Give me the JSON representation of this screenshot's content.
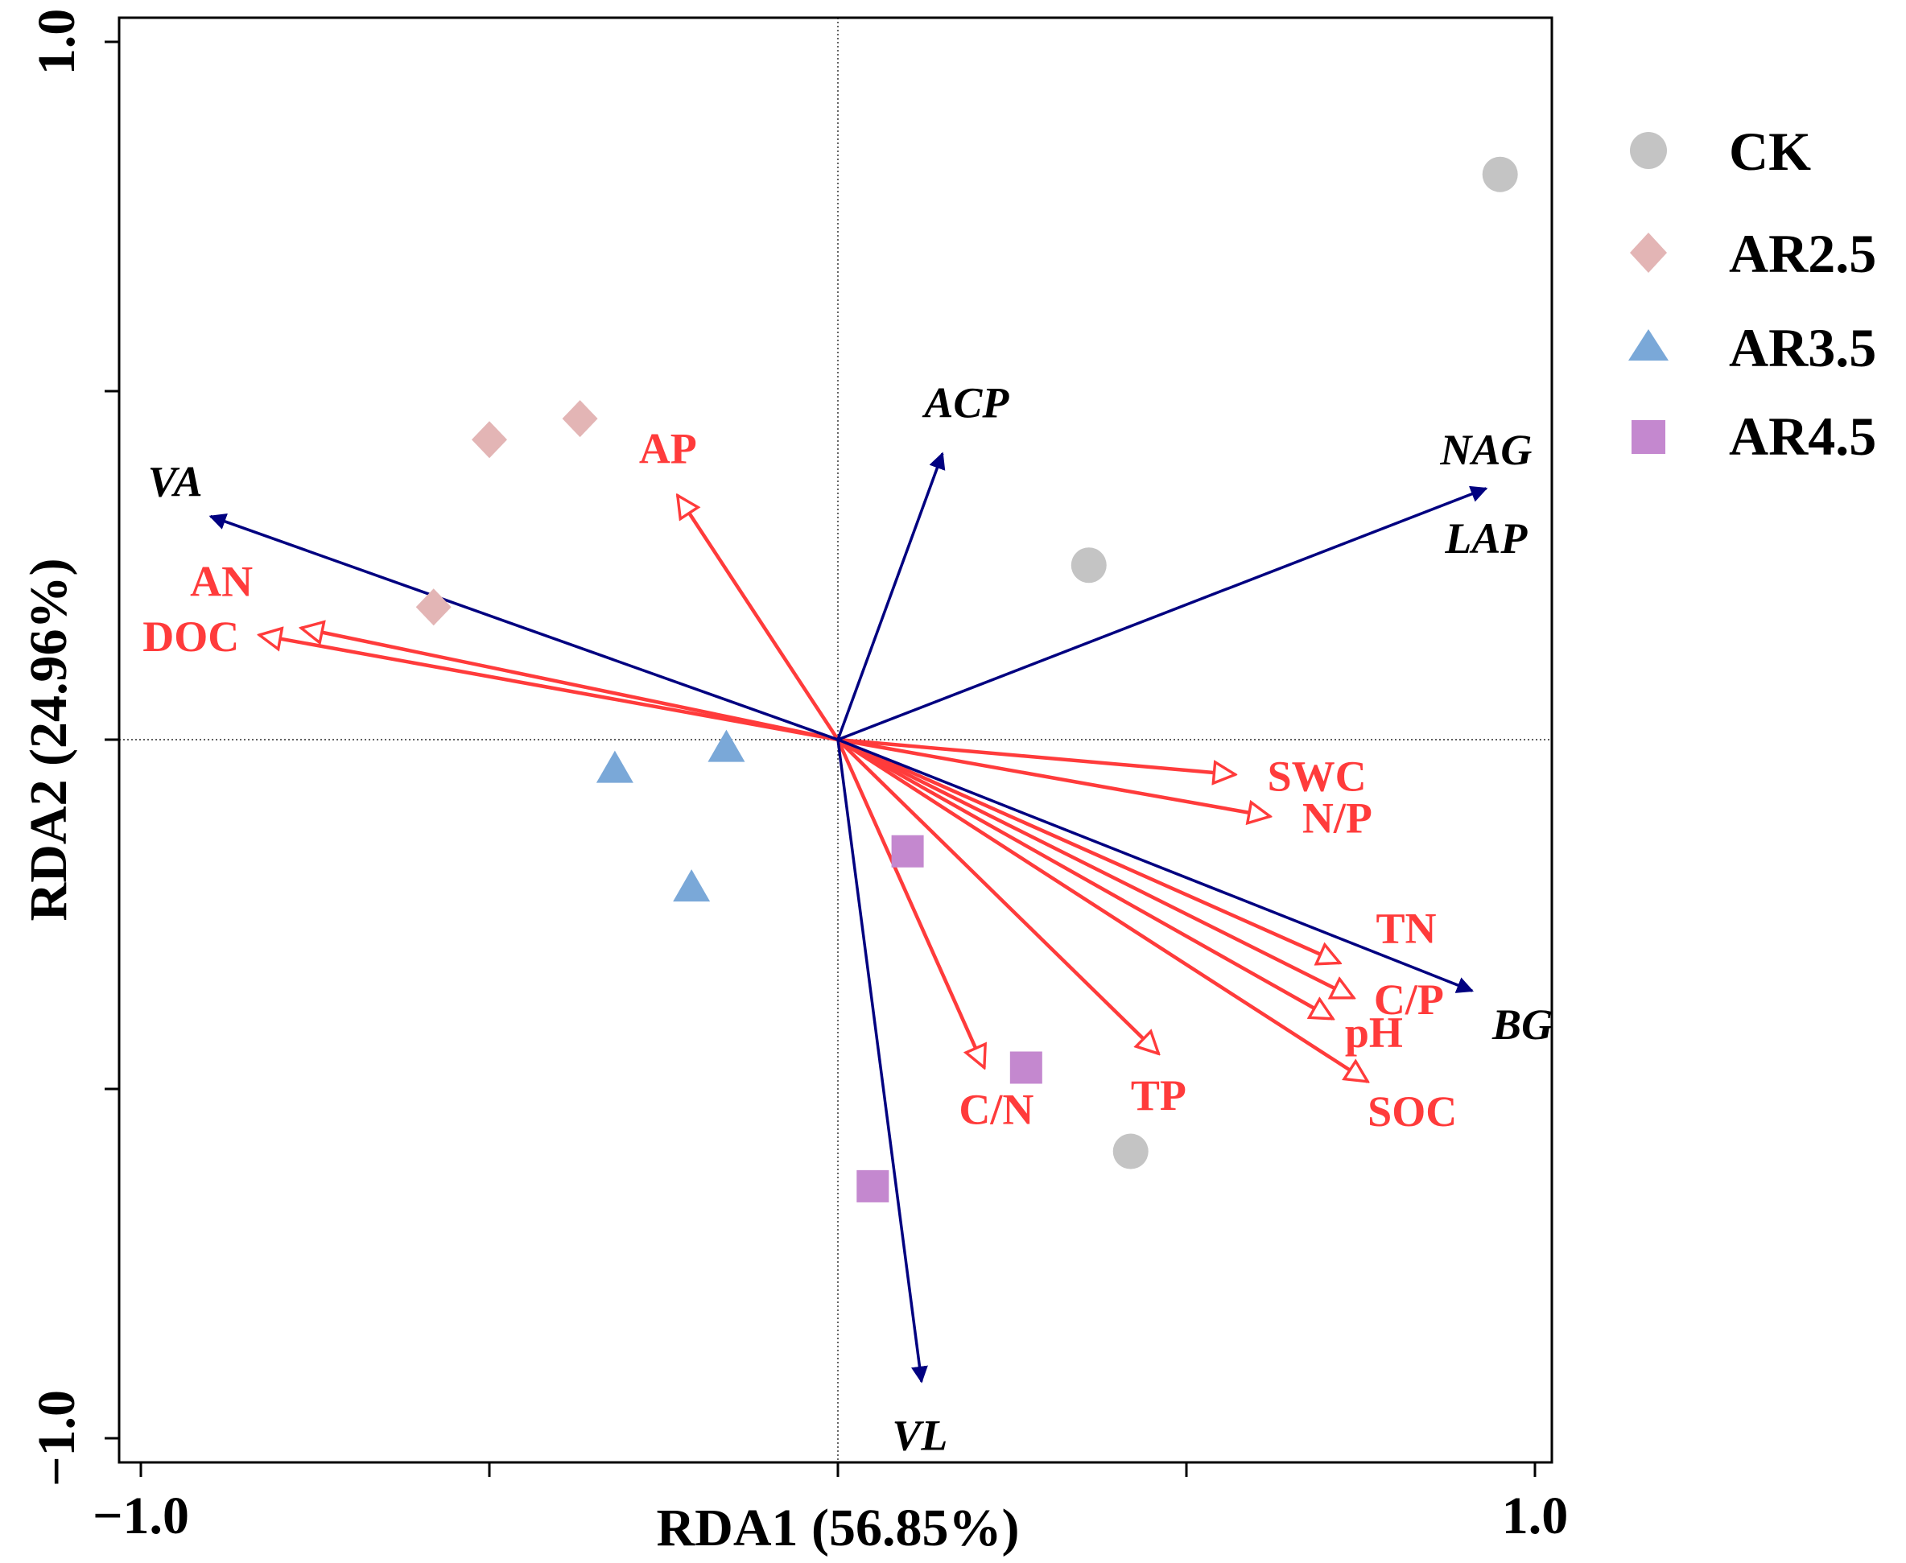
{
  "chart_data": {
    "type": "scatter",
    "title": "",
    "xlabel": "RDA1 (56.85%)",
    "ylabel": "RDA2 (24.96%)",
    "xlim": [
      -1.0,
      1.0
    ],
    "ylim": [
      -1.0,
      1.0
    ],
    "xtick_labels": [
      "−1.0",
      "1.0"
    ],
    "ytick_labels": [
      "1.0",
      "−1.0"
    ],
    "reference_lines": {
      "x": 0,
      "y": 0
    },
    "legend": {
      "position": "right",
      "entries": [
        {
          "name": "CK",
          "shape": "circle",
          "color": "#c4c4c4"
        },
        {
          "name": "AR2.5",
          "shape": "diamond",
          "color": "#e3b5b5"
        },
        {
          "name": "AR3.5",
          "shape": "triangle",
          "color": "#7aa8d8"
        },
        {
          "name": "AR4.5",
          "shape": "square",
          "color": "#c488cf"
        }
      ]
    },
    "series": [
      {
        "name": "CK",
        "points": [
          [
            0.95,
            0.81
          ],
          [
            0.36,
            0.25
          ],
          [
            0.42,
            -0.59
          ]
        ]
      },
      {
        "name": "AR2.5",
        "points": [
          [
            -0.5,
            0.43
          ],
          [
            -0.37,
            0.46
          ],
          [
            -0.58,
            0.19
          ]
        ]
      },
      {
        "name": "AR3.5",
        "points": [
          [
            -0.32,
            -0.04
          ],
          [
            -0.16,
            -0.01
          ],
          [
            -0.21,
            -0.21
          ]
        ]
      },
      {
        "name": "AR4.5",
        "points": [
          [
            0.1,
            -0.16
          ],
          [
            0.27,
            -0.47
          ],
          [
            0.05,
            -0.64
          ]
        ]
      }
    ],
    "response_vectors": {
      "color": "#000080",
      "items": [
        {
          "label": "VA",
          "x": -0.9,
          "y": 0.32
        },
        {
          "label": "ACP",
          "x": 0.15,
          "y": 0.41
        },
        {
          "label": "NAG",
          "x": 0.93,
          "y": 0.36
        },
        {
          "label": "LAP",
          "x": 0.93,
          "y": 0.36
        },
        {
          "label": "BG",
          "x": 0.91,
          "y": -0.36
        },
        {
          "label": "VL",
          "x": 0.12,
          "y": -0.92
        }
      ]
    },
    "explanatory_vectors": {
      "color": "#ff3b3b",
      "items": [
        {
          "label": "AP",
          "x": -0.23,
          "y": 0.35
        },
        {
          "label": "AN",
          "x": -0.77,
          "y": 0.16
        },
        {
          "label": "DOC",
          "x": -0.83,
          "y": 0.15
        },
        {
          "label": "SWC",
          "x": 0.57,
          "y": -0.05
        },
        {
          "label": "N/P",
          "x": 0.62,
          "y": -0.11
        },
        {
          "label": "TN",
          "x": 0.72,
          "y": -0.32
        },
        {
          "label": "C/P",
          "x": 0.74,
          "y": -0.37
        },
        {
          "label": "pH",
          "x": 0.71,
          "y": -0.4
        },
        {
          "label": "SOC",
          "x": 0.76,
          "y": -0.49
        },
        {
          "label": "TP",
          "x": 0.46,
          "y": -0.45
        },
        {
          "label": "C/N",
          "x": 0.21,
          "y": -0.47
        }
      ]
    }
  }
}
